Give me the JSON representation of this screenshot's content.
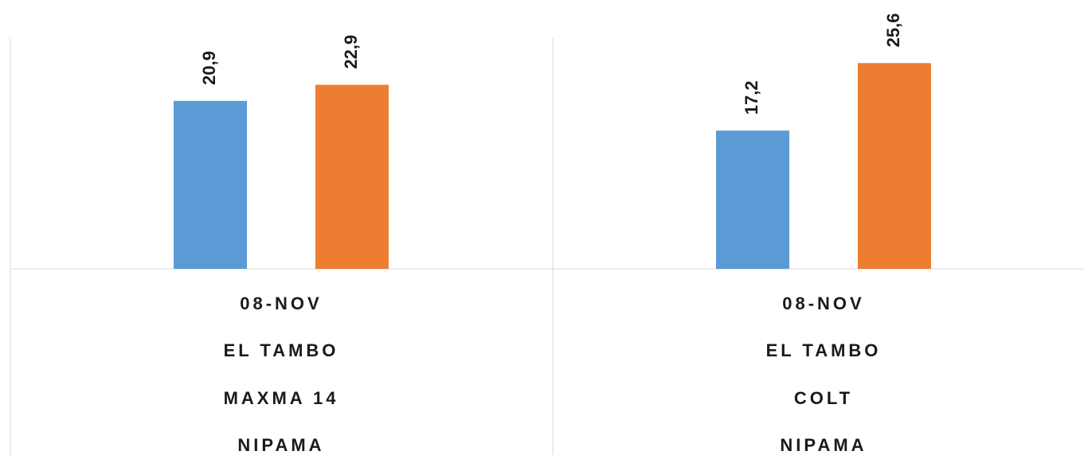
{
  "chart_data": {
    "type": "bar",
    "categories": [
      [
        "08-NOV",
        "EL TAMBO",
        "MAXMA 14",
        "NIPAMA"
      ],
      [
        "08-NOV",
        "EL TAMBO",
        "COLT",
        "NIPAMA"
      ]
    ],
    "series": [
      {
        "values": [
          20.9,
          17.2
        ],
        "labels": [
          "20,9",
          "17,2"
        ],
        "color": "#5b9bd5"
      },
      {
        "values": [
          22.9,
          25.6
        ],
        "labels": [
          "22,9",
          "25,6"
        ],
        "color": "#ed7d31"
      }
    ],
    "ylim": [
      0,
      28.7
    ],
    "gridlines": false,
    "data_labels": true,
    "legend": "none"
  }
}
